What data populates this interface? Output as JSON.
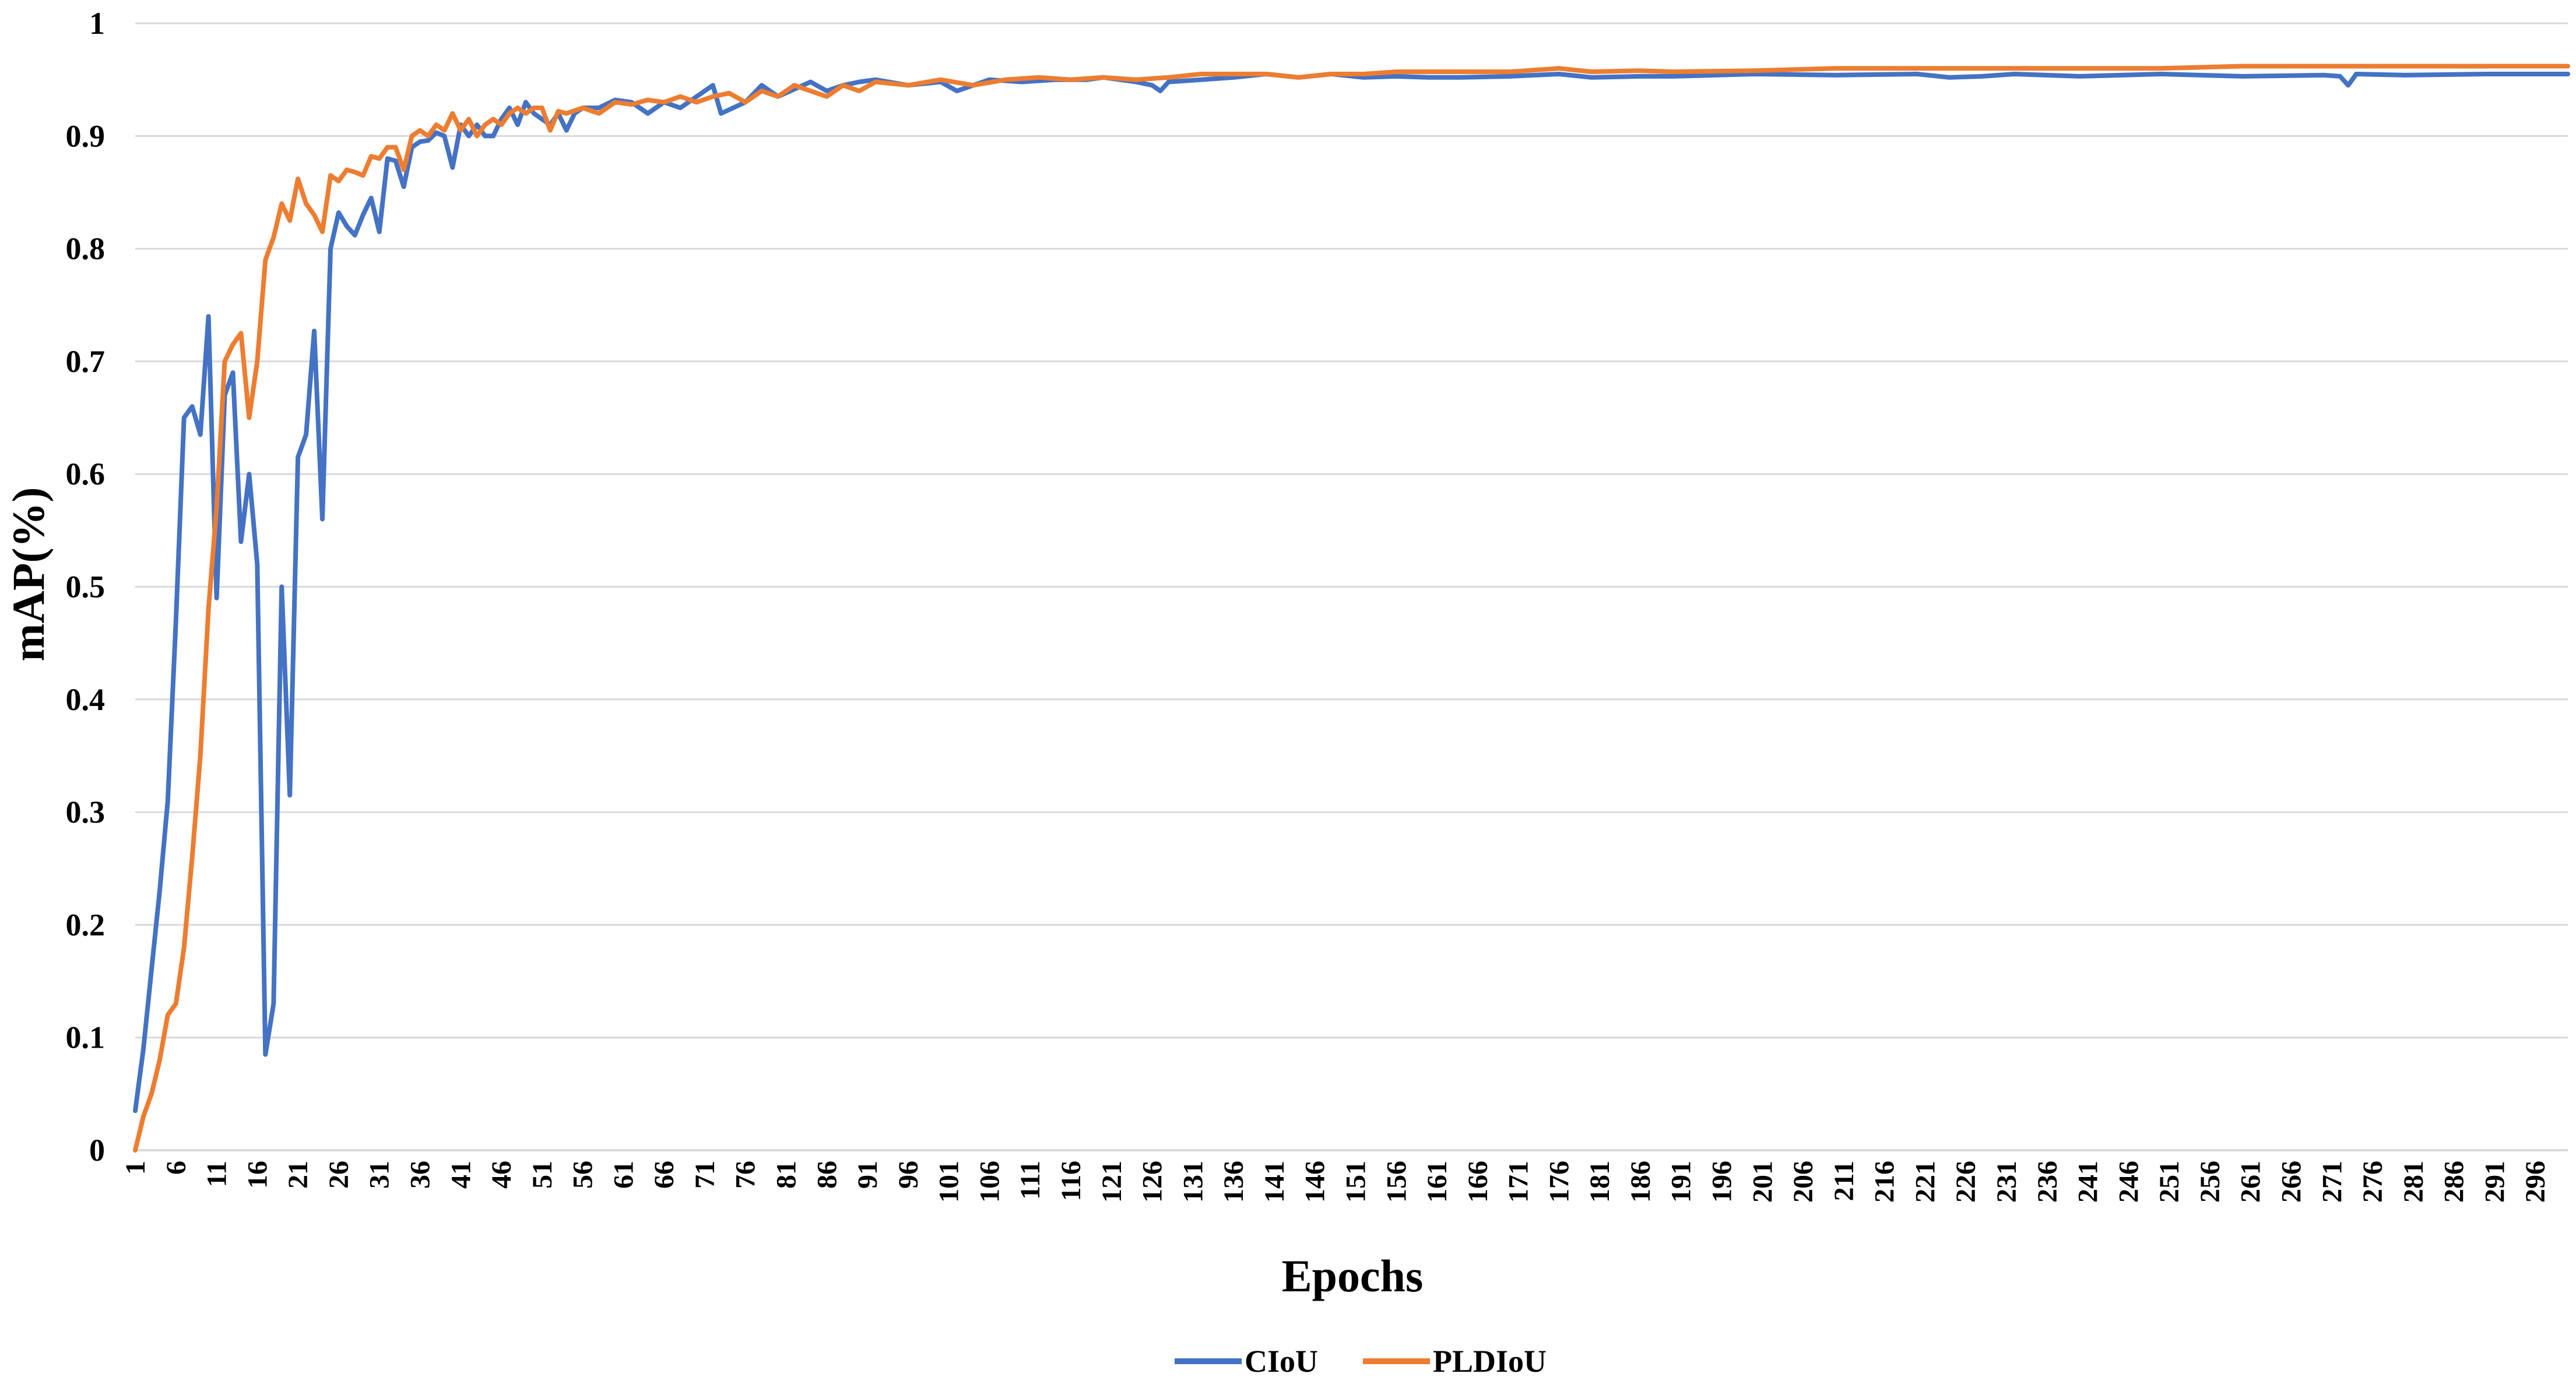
{
  "chart_data": {
    "type": "line",
    "title": "",
    "xlabel": "Epochs",
    "ylabel": "mAP(%)",
    "xlim": [
      1,
      300
    ],
    "ylim": [
      0,
      1
    ],
    "y_ticks": [
      "0",
      "0.1",
      "0.2",
      "0.3",
      "0.4",
      "0.5",
      "0.6",
      "0.7",
      "0.8",
      "0.9",
      "1"
    ],
    "x_ticks": [
      "1",
      "6",
      "11",
      "16",
      "21",
      "26",
      "31",
      "36",
      "41",
      "46",
      "51",
      "56",
      "61",
      "66",
      "71",
      "76",
      "81",
      "86",
      "91",
      "96",
      "101",
      "106",
      "111",
      "116",
      "121",
      "126",
      "131",
      "136",
      "141",
      "146",
      "151",
      "156",
      "161",
      "166",
      "171",
      "176",
      "181",
      "186",
      "191",
      "196",
      "201",
      "206",
      "211",
      "216",
      "221",
      "226",
      "231",
      "236",
      "241",
      "246",
      "251",
      "256",
      "261",
      "266",
      "271",
      "276",
      "281",
      "286",
      "291",
      "296"
    ],
    "grid": "horizontal",
    "legend": "bottom-center",
    "series": [
      {
        "name": "CIoU",
        "color": "#4472C4",
        "points": [
          [
            1,
            0.035
          ],
          [
            2,
            0.09
          ],
          [
            3,
            0.16
          ],
          [
            4,
            0.23
          ],
          [
            5,
            0.31
          ],
          [
            6,
            0.47
          ],
          [
            7,
            0.65
          ],
          [
            8,
            0.66
          ],
          [
            9,
            0.635
          ],
          [
            10,
            0.74
          ],
          [
            11,
            0.49
          ],
          [
            12,
            0.67
          ],
          [
            13,
            0.69
          ],
          [
            14,
            0.54
          ],
          [
            15,
            0.6
          ],
          [
            16,
            0.52
          ],
          [
            17,
            0.085
          ],
          [
            18,
            0.13
          ],
          [
            19,
            0.5
          ],
          [
            20,
            0.315
          ],
          [
            21,
            0.615
          ],
          [
            22,
            0.635
          ],
          [
            23,
            0.727
          ],
          [
            24,
            0.56
          ],
          [
            25,
            0.8
          ],
          [
            26,
            0.832
          ],
          [
            27,
            0.82
          ],
          [
            28,
            0.812
          ],
          [
            29,
            0.83
          ],
          [
            30,
            0.845
          ],
          [
            31,
            0.815
          ],
          [
            32,
            0.88
          ],
          [
            33,
            0.878
          ],
          [
            34,
            0.855
          ],
          [
            35,
            0.89
          ],
          [
            36,
            0.895
          ],
          [
            37,
            0.896
          ],
          [
            38,
            0.903
          ],
          [
            39,
            0.9
          ],
          [
            40,
            0.872
          ],
          [
            41,
            0.91
          ],
          [
            42,
            0.9
          ],
          [
            43,
            0.91
          ],
          [
            44,
            0.9
          ],
          [
            45,
            0.9
          ],
          [
            46,
            0.915
          ],
          [
            47,
            0.925
          ],
          [
            48,
            0.91
          ],
          [
            49,
            0.93
          ],
          [
            50,
            0.92
          ],
          [
            51,
            0.915
          ],
          [
            52,
            0.91
          ],
          [
            53,
            0.92
          ],
          [
            54,
            0.905
          ],
          [
            55,
            0.92
          ],
          [
            56,
            0.925
          ],
          [
            58,
            0.925
          ],
          [
            60,
            0.932
          ],
          [
            62,
            0.93
          ],
          [
            64,
            0.92
          ],
          [
            66,
            0.93
          ],
          [
            68,
            0.925
          ],
          [
            70,
            0.935
          ],
          [
            72,
            0.945
          ],
          [
            73,
            0.92
          ],
          [
            76,
            0.93
          ],
          [
            78,
            0.945
          ],
          [
            80,
            0.935
          ],
          [
            84,
            0.948
          ],
          [
            86,
            0.94
          ],
          [
            88,
            0.945
          ],
          [
            90,
            0.948
          ],
          [
            92,
            0.95
          ],
          [
            96,
            0.945
          ],
          [
            100,
            0.948
          ],
          [
            102,
            0.94
          ],
          [
            104,
            0.945
          ],
          [
            106,
            0.95
          ],
          [
            110,
            0.948
          ],
          [
            114,
            0.95
          ],
          [
            118,
            0.95
          ],
          [
            120,
            0.952
          ],
          [
            124,
            0.948
          ],
          [
            126,
            0.945
          ],
          [
            127,
            0.94
          ],
          [
            128,
            0.948
          ],
          [
            132,
            0.95
          ],
          [
            136,
            0.952
          ],
          [
            140,
            0.955
          ],
          [
            144,
            0.952
          ],
          [
            148,
            0.955
          ],
          [
            152,
            0.952
          ],
          [
            156,
            0.953
          ],
          [
            160,
            0.952
          ],
          [
            164,
            0.952
          ],
          [
            170,
            0.953
          ],
          [
            176,
            0.955
          ],
          [
            180,
            0.952
          ],
          [
            186,
            0.953
          ],
          [
            190,
            0.953
          ],
          [
            200,
            0.955
          ],
          [
            210,
            0.954
          ],
          [
            220,
            0.955
          ],
          [
            224,
            0.952
          ],
          [
            228,
            0.953
          ],
          [
            232,
            0.955
          ],
          [
            240,
            0.953
          ],
          [
            250,
            0.955
          ],
          [
            260,
            0.953
          ],
          [
            270,
            0.954
          ],
          [
            272,
            0.953
          ],
          [
            273,
            0.945
          ],
          [
            274,
            0.955
          ],
          [
            280,
            0.954
          ],
          [
            290,
            0.955
          ],
          [
            300,
            0.955
          ]
        ]
      },
      {
        "name": "PLDIoU",
        "color": "#ED7D31",
        "points": [
          [
            1,
            0.0
          ],
          [
            2,
            0.03
          ],
          [
            3,
            0.05
          ],
          [
            4,
            0.08
          ],
          [
            5,
            0.12
          ],
          [
            6,
            0.13
          ],
          [
            7,
            0.18
          ],
          [
            8,
            0.26
          ],
          [
            9,
            0.35
          ],
          [
            10,
            0.48
          ],
          [
            11,
            0.57
          ],
          [
            12,
            0.7
          ],
          [
            13,
            0.715
          ],
          [
            14,
            0.725
          ],
          [
            15,
            0.65
          ],
          [
            16,
            0.7
          ],
          [
            17,
            0.79
          ],
          [
            18,
            0.81
          ],
          [
            19,
            0.84
          ],
          [
            20,
            0.825
          ],
          [
            21,
            0.862
          ],
          [
            22,
            0.84
          ],
          [
            23,
            0.83
          ],
          [
            24,
            0.815
          ],
          [
            25,
            0.865
          ],
          [
            26,
            0.86
          ],
          [
            27,
            0.87
          ],
          [
            28,
            0.868
          ],
          [
            29,
            0.865
          ],
          [
            30,
            0.882
          ],
          [
            31,
            0.88
          ],
          [
            32,
            0.89
          ],
          [
            33,
            0.89
          ],
          [
            34,
            0.87
          ],
          [
            35,
            0.9
          ],
          [
            36,
            0.905
          ],
          [
            37,
            0.9
          ],
          [
            38,
            0.91
          ],
          [
            39,
            0.905
          ],
          [
            40,
            0.92
          ],
          [
            41,
            0.905
          ],
          [
            42,
            0.915
          ],
          [
            43,
            0.9
          ],
          [
            44,
            0.91
          ],
          [
            45,
            0.915
          ],
          [
            46,
            0.91
          ],
          [
            47,
            0.92
          ],
          [
            48,
            0.925
          ],
          [
            49,
            0.92
          ],
          [
            50,
            0.925
          ],
          [
            51,
            0.925
          ],
          [
            52,
            0.905
          ],
          [
            53,
            0.922
          ],
          [
            54,
            0.92
          ],
          [
            56,
            0.925
          ],
          [
            58,
            0.92
          ],
          [
            60,
            0.93
          ],
          [
            62,
            0.928
          ],
          [
            64,
            0.932
          ],
          [
            66,
            0.93
          ],
          [
            68,
            0.935
          ],
          [
            70,
            0.93
          ],
          [
            72,
            0.935
          ],
          [
            74,
            0.938
          ],
          [
            76,
            0.93
          ],
          [
            78,
            0.94
          ],
          [
            80,
            0.935
          ],
          [
            82,
            0.945
          ],
          [
            84,
            0.94
          ],
          [
            86,
            0.935
          ],
          [
            88,
            0.945
          ],
          [
            90,
            0.94
          ],
          [
            92,
            0.948
          ],
          [
            96,
            0.945
          ],
          [
            100,
            0.95
          ],
          [
            104,
            0.945
          ],
          [
            108,
            0.95
          ],
          [
            112,
            0.952
          ],
          [
            116,
            0.95
          ],
          [
            120,
            0.952
          ],
          [
            124,
            0.95
          ],
          [
            128,
            0.952
          ],
          [
            132,
            0.955
          ],
          [
            136,
            0.955
          ],
          [
            140,
            0.955
          ],
          [
            144,
            0.952
          ],
          [
            148,
            0.955
          ],
          [
            152,
            0.955
          ],
          [
            156,
            0.957
          ],
          [
            160,
            0.957
          ],
          [
            170,
            0.957
          ],
          [
            176,
            0.96
          ],
          [
            180,
            0.957
          ],
          [
            186,
            0.958
          ],
          [
            190,
            0.957
          ],
          [
            200,
            0.958
          ],
          [
            210,
            0.96
          ],
          [
            220,
            0.96
          ],
          [
            230,
            0.96
          ],
          [
            240,
            0.96
          ],
          [
            250,
            0.96
          ],
          [
            260,
            0.962
          ],
          [
            270,
            0.962
          ],
          [
            280,
            0.962
          ],
          [
            290,
            0.962
          ],
          [
            300,
            0.962
          ]
        ]
      }
    ]
  }
}
